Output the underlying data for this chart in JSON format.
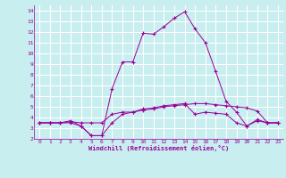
{
  "xlabel": "Windchill (Refroidissement éolien,°C)",
  "bg_color": "#c8eef0",
  "line_color": "#990099",
  "grid_color": "#ffffff",
  "xlim": [
    -0.5,
    23.5
  ],
  "ylim": [
    2,
    14.5
  ],
  "xticks": [
    0,
    1,
    2,
    3,
    4,
    5,
    6,
    7,
    8,
    9,
    10,
    11,
    12,
    13,
    14,
    15,
    16,
    17,
    18,
    19,
    20,
    21,
    22,
    23
  ],
  "yticks": [
    2,
    3,
    4,
    5,
    6,
    7,
    8,
    9,
    10,
    11,
    12,
    13,
    14
  ],
  "line1_x": [
    0,
    1,
    2,
    3,
    4,
    5,
    6,
    7,
    8,
    9,
    10,
    11,
    12,
    13,
    14,
    15,
    16,
    17,
    18,
    19,
    20,
    21,
    22,
    23
  ],
  "line1_y": [
    3.5,
    3.5,
    3.5,
    3.6,
    3.5,
    3.5,
    3.5,
    4.3,
    4.5,
    4.5,
    4.7,
    4.8,
    5.0,
    5.1,
    5.2,
    5.3,
    5.3,
    5.2,
    5.1,
    5.0,
    4.9,
    4.6,
    3.5,
    3.5
  ],
  "line2_x": [
    0,
    1,
    2,
    3,
    4,
    5,
    6,
    7,
    8,
    9,
    10,
    11,
    12,
    13,
    14,
    15,
    16,
    17,
    18,
    19,
    20,
    21,
    22,
    23
  ],
  "line2_y": [
    3.5,
    3.5,
    3.5,
    3.7,
    3.2,
    2.3,
    2.3,
    6.7,
    9.2,
    9.2,
    11.9,
    11.8,
    12.5,
    13.3,
    13.9,
    12.3,
    11.0,
    8.3,
    5.5,
    4.5,
    3.2,
    3.7,
    3.5,
    3.5
  ],
  "line3_x": [
    0,
    1,
    2,
    3,
    4,
    5,
    6,
    7,
    8,
    9,
    10,
    11,
    12,
    13,
    14,
    15,
    16,
    17,
    18,
    19,
    20,
    21,
    22,
    23
  ],
  "line3_y": [
    3.5,
    3.5,
    3.5,
    3.5,
    3.2,
    2.3,
    2.3,
    3.5,
    4.3,
    4.5,
    4.8,
    4.9,
    5.1,
    5.2,
    5.3,
    4.3,
    4.5,
    4.4,
    4.3,
    3.5,
    3.2,
    3.8,
    3.5,
    3.5
  ]
}
